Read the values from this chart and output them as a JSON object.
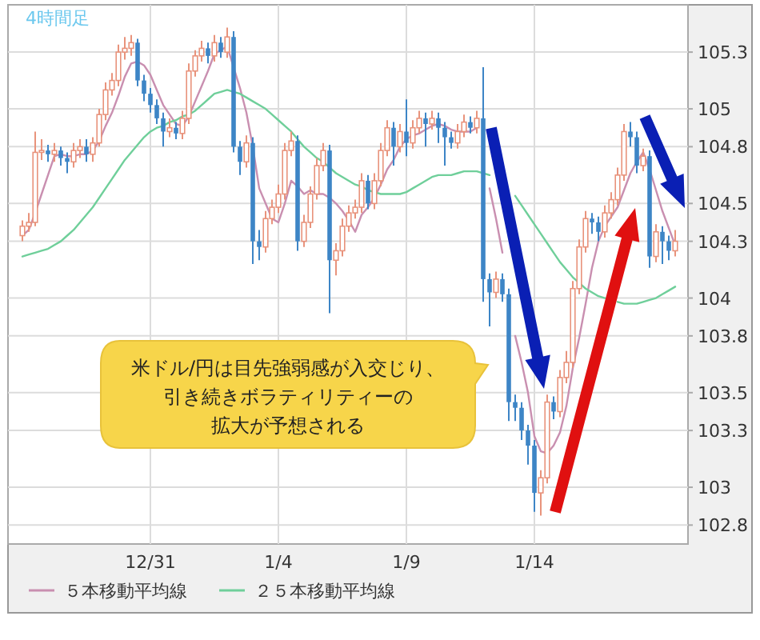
{
  "chart_data": {
    "type": "candlestick",
    "title": "4時間足",
    "categories": [
      null,
      null,
      null,
      null,
      null,
      null,
      null,
      null,
      null,
      null,
      null,
      null,
      null,
      null,
      null,
      null,
      null,
      null,
      null,
      null,
      "12/31",
      null,
      null,
      null,
      null,
      null,
      null,
      null,
      null,
      null,
      null,
      null,
      null,
      null,
      null,
      null,
      null,
      null,
      null,
      null,
      "1/4",
      null,
      null,
      null,
      null,
      null,
      null,
      null,
      null,
      null,
      null,
      null,
      null,
      null,
      null,
      null,
      null,
      null,
      null,
      null,
      "1/9",
      null,
      null,
      null,
      null,
      null,
      null,
      null,
      null,
      null,
      null,
      null,
      null,
      null,
      null,
      null,
      null,
      null,
      null,
      null,
      "1/14",
      null,
      null,
      null,
      null,
      null,
      null,
      null,
      null,
      null,
      null,
      null,
      null,
      null,
      null,
      null,
      null,
      null,
      null,
      null,
      null,
      null,
      null
    ],
    "ohlc": [
      [
        104.33,
        104.41,
        104.3,
        104.38
      ],
      [
        104.38,
        104.45,
        104.35,
        104.4
      ],
      [
        104.4,
        104.88,
        104.38,
        104.77
      ],
      [
        104.77,
        104.84,
        104.73,
        104.78
      ],
      [
        104.78,
        104.81,
        104.72,
        104.76
      ],
      [
        104.76,
        104.82,
        104.72,
        104.78
      ],
      [
        104.78,
        104.8,
        104.7,
        104.74
      ],
      [
        104.74,
        104.77,
        104.66,
        104.72
      ],
      [
        104.72,
        104.82,
        104.69,
        104.78
      ],
      [
        104.78,
        104.84,
        104.74,
        104.8
      ],
      [
        104.8,
        104.84,
        104.72,
        104.76
      ],
      [
        104.76,
        104.85,
        104.72,
        104.82
      ],
      [
        104.82,
        105.0,
        104.8,
        104.97
      ],
      [
        104.97,
        105.14,
        104.94,
        105.1
      ],
      [
        105.1,
        105.19,
        105.07,
        105.15
      ],
      [
        105.15,
        105.34,
        105.12,
        105.3
      ],
      [
        105.3,
        105.38,
        105.26,
        105.32
      ],
      [
        105.32,
        105.39,
        105.28,
        105.35
      ],
      [
        105.35,
        105.37,
        105.12,
        105.15
      ],
      [
        105.15,
        105.18,
        105.04,
        105.08
      ],
      [
        105.08,
        105.11,
        104.98,
        105.02
      ],
      [
        105.02,
        105.05,
        104.92,
        104.95
      ],
      [
        104.95,
        104.98,
        104.8,
        104.88
      ],
      [
        104.88,
        104.95,
        104.85,
        104.9
      ],
      [
        104.9,
        104.93,
        104.84,
        104.87
      ],
      [
        104.87,
        104.99,
        104.84,
        104.95
      ],
      [
        104.95,
        105.24,
        104.92,
        105.2
      ],
      [
        105.2,
        105.31,
        105.17,
        105.28
      ],
      [
        105.28,
        105.36,
        105.25,
        105.32
      ],
      [
        105.32,
        105.35,
        105.24,
        105.28
      ],
      [
        105.28,
        105.39,
        105.25,
        105.35
      ],
      [
        105.35,
        105.38,
        105.27,
        105.3
      ],
      [
        105.3,
        105.43,
        105.27,
        105.38
      ],
      [
        105.38,
        105.41,
        104.77,
        104.8
      ],
      [
        104.8,
        104.83,
        104.65,
        104.72
      ],
      [
        104.72,
        104.86,
        104.69,
        104.82
      ],
      [
        104.82,
        104.85,
        104.18,
        104.3
      ],
      [
        104.3,
        104.36,
        104.2,
        104.27
      ],
      [
        104.27,
        104.46,
        104.24,
        104.42
      ],
      [
        104.42,
        104.52,
        104.39,
        104.48
      ],
      [
        104.48,
        104.6,
        104.45,
        104.55
      ],
      [
        104.55,
        104.82,
        104.52,
        104.78
      ],
      [
        104.78,
        104.88,
        104.75,
        104.83
      ],
      [
        104.83,
        104.86,
        104.25,
        104.3
      ],
      [
        104.3,
        104.44,
        104.27,
        104.4
      ],
      [
        104.4,
        104.59,
        104.37,
        104.55
      ],
      [
        104.55,
        104.74,
        104.52,
        104.7
      ],
      [
        104.7,
        104.82,
        104.67,
        104.78
      ],
      [
        104.78,
        104.81,
        103.92,
        104.2
      ],
      [
        104.2,
        104.29,
        104.12,
        104.25
      ],
      [
        104.25,
        104.42,
        104.22,
        104.38
      ],
      [
        104.38,
        104.49,
        104.35,
        104.45
      ],
      [
        104.45,
        104.52,
        104.42,
        104.48
      ],
      [
        104.48,
        104.66,
        104.45,
        104.62
      ],
      [
        104.62,
        104.65,
        104.47,
        104.5
      ],
      [
        104.5,
        104.66,
        104.47,
        104.62
      ],
      [
        104.62,
        104.82,
        104.59,
        104.78
      ],
      [
        104.78,
        104.94,
        104.75,
        104.9
      ],
      [
        104.9,
        104.93,
        104.7,
        104.8
      ],
      [
        104.8,
        104.92,
        104.77,
        104.88
      ],
      [
        104.88,
        105.05,
        104.75,
        104.82
      ],
      [
        104.82,
        104.94,
        104.79,
        104.9
      ],
      [
        104.9,
        104.99,
        104.87,
        104.95
      ],
      [
        104.95,
        104.98,
        104.8,
        104.92
      ],
      [
        104.92,
        104.99,
        104.89,
        104.95
      ],
      [
        104.95,
        104.98,
        104.82,
        104.9
      ],
      [
        104.9,
        104.93,
        104.7,
        104.85
      ],
      [
        104.85,
        104.88,
        104.79,
        104.82
      ],
      [
        104.82,
        104.92,
        104.79,
        104.88
      ],
      [
        104.88,
        104.97,
        104.85,
        104.93
      ],
      [
        104.93,
        104.96,
        104.87,
        104.9
      ],
      [
        104.9,
        104.99,
        104.87,
        104.95
      ],
      [
        104.95,
        105.22,
        103.98,
        104.1
      ],
      [
        104.1,
        104.13,
        103.85,
        104.03
      ],
      [
        104.03,
        104.14,
        104.0,
        104.1
      ],
      [
        104.1,
        104.13,
        103.98,
        104.02
      ],
      [
        104.02,
        104.05,
        103.35,
        103.45
      ],
      [
        103.45,
        103.49,
        103.35,
        103.42
      ],
      [
        103.42,
        103.45,
        103.25,
        103.3
      ],
      [
        103.3,
        103.33,
        103.12,
        103.22
      ],
      [
        103.22,
        103.25,
        102.87,
        102.97
      ],
      [
        102.97,
        103.09,
        102.85,
        103.05
      ],
      [
        103.05,
        103.49,
        103.02,
        103.45
      ],
      [
        103.45,
        103.48,
        103.36,
        103.4
      ],
      [
        103.4,
        103.62,
        103.37,
        103.58
      ],
      [
        103.58,
        103.72,
        103.55,
        103.66
      ],
      [
        103.66,
        104.09,
        103.63,
        104.05
      ],
      [
        104.05,
        104.31,
        104.02,
        104.27
      ],
      [
        104.27,
        104.46,
        104.24,
        104.42
      ],
      [
        104.42,
        104.45,
        104.34,
        104.4
      ],
      [
        104.4,
        104.43,
        104.3,
        104.35
      ],
      [
        104.35,
        104.49,
        104.32,
        104.45
      ],
      [
        104.45,
        104.56,
        104.42,
        104.52
      ],
      [
        104.52,
        104.69,
        104.49,
        104.65
      ],
      [
        104.65,
        104.92,
        104.62,
        104.88
      ],
      [
        104.88,
        104.93,
        104.8,
        104.85
      ],
      [
        104.85,
        104.88,
        104.66,
        104.7
      ],
      [
        104.7,
        104.79,
        104.67,
        104.75
      ],
      [
        104.75,
        104.78,
        104.16,
        104.22
      ],
      [
        104.22,
        104.39,
        104.19,
        104.35
      ],
      [
        104.35,
        104.38,
        104.18,
        104.3
      ],
      [
        104.3,
        104.33,
        104.2,
        104.25
      ],
      [
        104.25,
        104.36,
        104.22,
        104.3
      ]
    ],
    "colors": [
      "#e8937c",
      "#e8937c",
      "#e8937c",
      "#e8937c",
      "#3d85c6",
      "#e8937c",
      "#3d85c6",
      "#3d85c6",
      "#e8937c",
      "#e8937c",
      "#3d85c6",
      "#e8937c",
      "#e8937c",
      "#e8937c",
      "#e8937c",
      "#e8937c",
      "#e8937c",
      "#e8937c",
      "#3d85c6",
      "#3d85c6",
      "#3d85c6",
      "#3d85c6",
      "#3d85c6",
      "#e8937c",
      "#3d85c6",
      "#e8937c",
      "#e8937c",
      "#e8937c",
      "#e8937c",
      "#3d85c6",
      "#e8937c",
      "#3d85c6",
      "#e8937c",
      "#3d85c6",
      "#3d85c6",
      "#e8937c",
      "#3d85c6",
      "#3d85c6",
      "#e8937c",
      "#e8937c",
      "#e8937c",
      "#e8937c",
      "#e8937c",
      "#3d85c6",
      "#e8937c",
      "#e8937c",
      "#e8937c",
      "#e8937c",
      "#3d85c6",
      "#e8937c",
      "#e8937c",
      "#e8937c",
      "#e8937c",
      "#e8937c",
      "#3d85c6",
      "#e8937c",
      "#e8937c",
      "#e8937c",
      "#3d85c6",
      "#e8937c",
      "#3d85c6",
      "#e8937c",
      "#e8937c",
      "#3d85c6",
      "#e8937c",
      "#3d85c6",
      "#3d85c6",
      "#3d85c6",
      "#e8937c",
      "#e8937c",
      "#3d85c6",
      "#e8937c",
      "#3d85c6",
      "#3d85c6",
      "#e8937c",
      "#3d85c6",
      "#3d85c6",
      "#3d85c6",
      "#3d85c6",
      "#3d85c6",
      "#3d85c6",
      "#e8937c",
      "#e8937c",
      "#3d85c6",
      "#e8937c",
      "#e8937c",
      "#e8937c",
      "#e8937c",
      "#e8937c",
      "#3d85c6",
      "#3d85c6",
      "#e8937c",
      "#e8937c",
      "#e8937c",
      "#e8937c",
      "#3d85c6",
      "#3d85c6",
      "#e8937c",
      "#3d85c6",
      "#e8937c",
      "#3d85c6",
      "#3d85c6",
      "#e8937c"
    ],
    "series": [
      {
        "type": "line",
        "name": "５本移動平均線",
        "color": "#c98fb0",
        "values": [
          104.33,
          104.36,
          104.45,
          104.55,
          104.65,
          104.75,
          104.76,
          104.75,
          104.75,
          104.76,
          104.76,
          104.78,
          104.83,
          104.91,
          104.98,
          105.07,
          105.17,
          105.24,
          105.25,
          105.23,
          105.18,
          105.1,
          105.02,
          104.97,
          104.92,
          104.91,
          104.96,
          105.04,
          105.12,
          105.2,
          105.29,
          105.31,
          105.33,
          105.22,
          105.11,
          104.98,
          104.8,
          104.58,
          104.5,
          104.42,
          104.4,
          104.5,
          104.62,
          104.59,
          104.55,
          104.57,
          104.55,
          104.55,
          104.53,
          104.5,
          104.46,
          104.41,
          104.35,
          104.44,
          104.48,
          104.53,
          104.6,
          104.68,
          104.73,
          104.8,
          104.84,
          104.86,
          104.87,
          104.89,
          104.91,
          104.92,
          104.91,
          104.89,
          104.88,
          104.88,
          104.88,
          104.9,
          null,
          104.58,
          104.42,
          104.24,
          null,
          103.8,
          103.66,
          103.5,
          103.27,
          103.19,
          103.18,
          103.22,
          103.29,
          103.43,
          103.63,
          103.79,
          103.97,
          104.16,
          104.3,
          104.38,
          104.43,
          104.48,
          104.57,
          104.66,
          104.72,
          104.77,
          104.68,
          104.57,
          104.46,
          104.37,
          104.28
        ]
      },
      {
        "type": "line",
        "name": "２５本移動平均線",
        "color": "#6fcf9a",
        "values": [
          104.22,
          104.23,
          104.24,
          104.25,
          104.26,
          104.28,
          104.3,
          104.33,
          104.36,
          104.4,
          104.44,
          104.48,
          104.53,
          104.58,
          104.63,
          104.68,
          104.73,
          104.77,
          104.81,
          104.85,
          104.88,
          104.9,
          104.91,
          104.93,
          104.94,
          104.96,
          104.97,
          104.99,
          105.02,
          105.05,
          105.08,
          105.09,
          105.1,
          105.09,
          105.08,
          105.06,
          105.04,
          105.02,
          105.0,
          104.97,
          104.94,
          104.91,
          104.88,
          104.84,
          104.8,
          104.77,
          104.74,
          104.72,
          104.69,
          104.66,
          104.64,
          104.62,
          104.6,
          104.59,
          104.57,
          104.56,
          104.55,
          104.55,
          104.55,
          104.55,
          104.56,
          104.58,
          104.6,
          104.62,
          104.64,
          104.65,
          104.65,
          104.65,
          104.66,
          104.67,
          104.67,
          104.67,
          104.66,
          104.65,
          null,
          null,
          null,
          104.54,
          104.49,
          104.44,
          104.39,
          104.34,
          104.29,
          104.24,
          104.19,
          104.15,
          104.11,
          104.08,
          104.05,
          104.03,
          104.01,
          104.0,
          null,
          103.98,
          103.97,
          103.97,
          103.97,
          103.98,
          103.99,
          104.0,
          104.02,
          104.04,
          104.06
        ]
      }
    ],
    "ylim": [
      102.7,
      105.55
    ],
    "yticks": [
      105.3,
      105,
      104.8,
      104.5,
      104.3,
      104,
      103.8,
      103.5,
      103.3,
      103,
      102.8
    ],
    "grid": true,
    "legend": "bottom",
    "annotations": [
      "米ドル/円は目先強弱感が入交じり、引き続きボラティリティーの拡大が予想される"
    ]
  }
}
